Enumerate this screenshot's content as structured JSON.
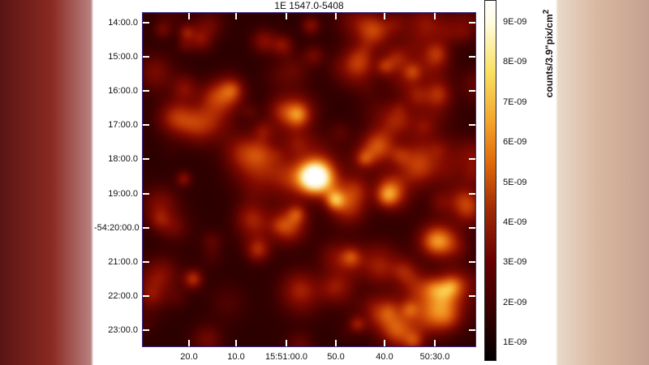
{
  "chart_data": {
    "type": "heatmap",
    "title": "1E 1547.0-5408",
    "y_tick_labels": [
      "14:00.0",
      "15:00.0",
      "16:00.0",
      "17:00.0",
      "18:00.0",
      "19:00.0",
      "-54:20:00.0",
      "21:00.0",
      "22:00.0",
      "23:00.0"
    ],
    "x_tick_labels": [
      "20.0",
      "10.0",
      "15:51:00.0",
      "50.0",
      "40.0",
      "50:30.0"
    ],
    "colorbar": {
      "label": "counts/3.9\"pix/cm",
      "label_superscript": "2",
      "tick_labels": [
        "9E-09",
        "8E-09",
        "7E-09",
        "6E-09",
        "5E-09",
        "4E-09",
        "3E-09",
        "2E-09",
        "1E-09"
      ],
      "range": [
        5e-10,
        9.5e-09
      ],
      "colormap": "heat (black-red-orange-yellow-white)"
    },
    "colors": {
      "low": "#000000",
      "mid": "#c03a05",
      "high": "#ffffff"
    }
  }
}
